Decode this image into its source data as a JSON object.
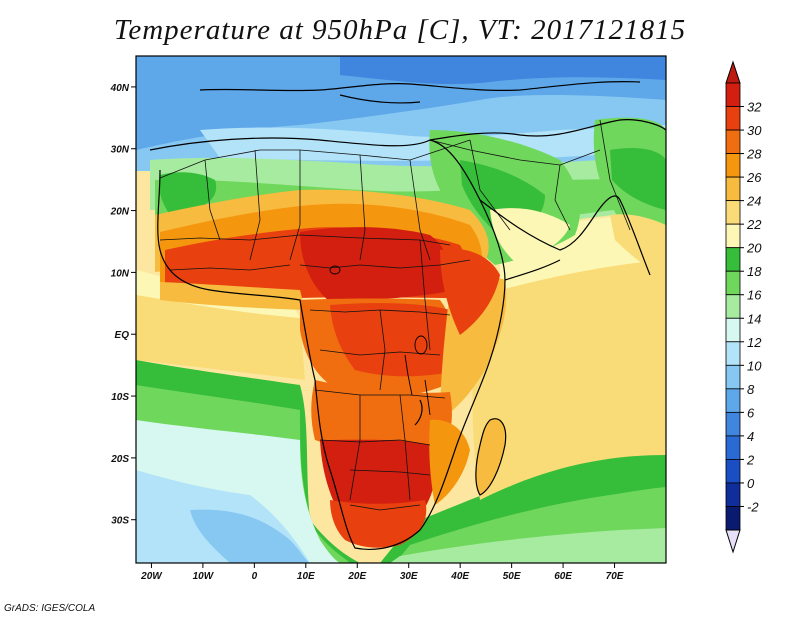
{
  "title": "Temperature at 950hPa [C], VT: 2017121815",
  "footer": "GrADS: IGES/COLA",
  "map": {
    "region": "Africa, Arabian Peninsula, South Asia",
    "lon_range": [
      -23,
      80
    ],
    "lat_range": [
      -37,
      45
    ],
    "x_ticks": [
      "20W",
      "10W",
      "0",
      "10E",
      "20E",
      "30E",
      "40E",
      "50E",
      "60E",
      "70E"
    ],
    "y_ticks": [
      "40N",
      "30N",
      "20N",
      "10N",
      "EQ",
      "10S",
      "20S",
      "30S"
    ]
  },
  "colorbar": {
    "labels": [
      "32",
      "30",
      "28",
      "26",
      "24",
      "22",
      "20",
      "18",
      "16",
      "14",
      "12",
      "10",
      "8",
      "6",
      "4",
      "2",
      "0",
      "-2"
    ],
    "colors": [
      "#d31f10",
      "#e8400f",
      "#f06d10",
      "#f5960f",
      "#f7bb3f",
      "#f9dc78",
      "#fcf7b4",
      "#36bd3a",
      "#6fd75b",
      "#a6eba0",
      "#d6f8f0",
      "#b3e3f8",
      "#87c8f2",
      "#5ea8ea",
      "#4186de",
      "#2a6ad4",
      "#1a4fc4",
      "#0f2d9b",
      "#0a1a6e"
    ],
    "over_color": "#bf1a10",
    "under_color": "#e6e0f8"
  },
  "colors": {
    "ocean_warm": "#f7cf6b",
    "ocean_mid": "#fdf2b0",
    "ocean_cool": "#86c7f0",
    "land_hot": "#d92312",
    "frame": "#000000"
  }
}
